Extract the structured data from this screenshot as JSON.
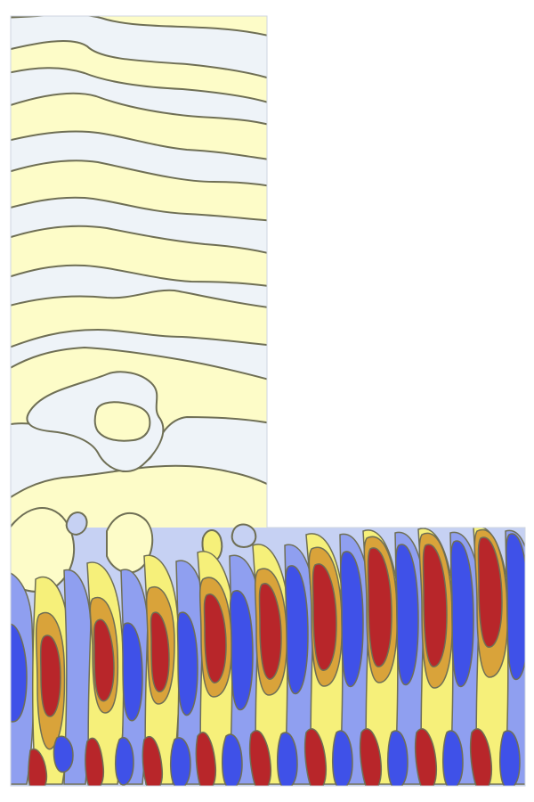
{
  "figure": {
    "description_visible_text": "",
    "colors": {
      "background": "#ffffff",
      "very_light_blue": "#eef3f8",
      "pale_yellow": "#fdfcc8",
      "light_blue": "#c6d1f3",
      "mid_blue": "#8f9ff0",
      "deep_blue": "#3f51e8",
      "yellow": "#f6f07a",
      "orange": "#d9a33a",
      "red": "#b8262a",
      "contour_line": "#6f6f55"
    }
  }
}
